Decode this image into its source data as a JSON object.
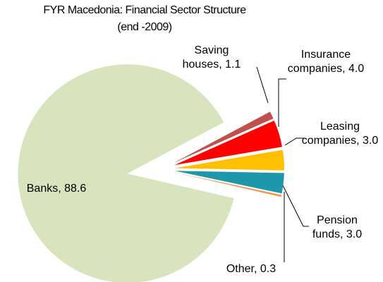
{
  "chart_data": {
    "type": "pie",
    "title": "FYR Macedonia: Financial Sector Structure",
    "subtitle": "(end -2009)",
    "values": [
      1.1,
      4.0,
      3.0,
      3.0,
      0.3,
      88.6
    ],
    "value_labels": [
      "Saving houses, 1.1",
      "Insurance companies, 4.0",
      "Leasing companies, 3.0",
      "Pension funds, 3.0",
      "Other, 0.3",
      "Banks, 88.6"
    ],
    "colors": [
      "#c0504d",
      "#ff0000",
      "#ffc000",
      "#1f97ab",
      "#f79646",
      "#d7e4bd"
    ]
  }
}
